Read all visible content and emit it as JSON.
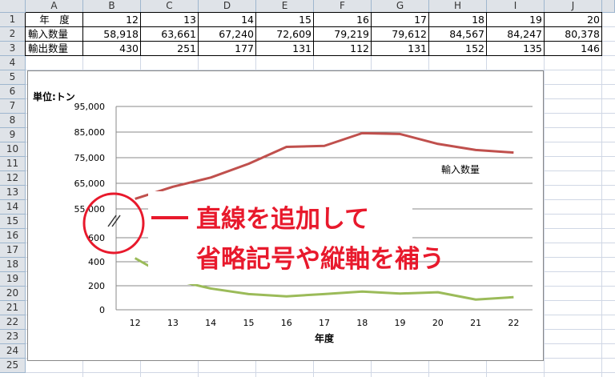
{
  "columns": [
    "A",
    "B",
    "C",
    "D",
    "E",
    "F",
    "G",
    "H",
    "I",
    "J"
  ],
  "rows": [
    "1",
    "2",
    "3",
    "4",
    "5",
    "6",
    "7",
    "8",
    "9",
    "10",
    "11",
    "12",
    "13",
    "14",
    "15",
    "16",
    "17",
    "18",
    "19",
    "20",
    "21",
    "22",
    "23",
    "24",
    "25"
  ],
  "table": {
    "row1": {
      "label": "年　度",
      "values": [
        "12",
        "13",
        "14",
        "15",
        "16",
        "17",
        "18",
        "19",
        "20"
      ]
    },
    "row2": {
      "label": "輸入数量",
      "values": [
        "58,918",
        "63,661",
        "67,240",
        "72,609",
        "79,219",
        "79,612",
        "84,567",
        "84,247",
        "80,378"
      ]
    },
    "row3": {
      "label": "輸出数量",
      "values": [
        "430",
        "251",
        "177",
        "131",
        "112",
        "131",
        "152",
        "135",
        "146"
      ]
    }
  },
  "chart_data": {
    "type": "line",
    "unit_label": "単位:トン",
    "xlabel": "年度",
    "categories": [
      "12",
      "13",
      "14",
      "15",
      "16",
      "17",
      "18",
      "19",
      "20",
      "21",
      "22"
    ],
    "upper_axis": {
      "ticks": [
        "95,000",
        "85,000",
        "75,000",
        "65,000",
        "55,000"
      ],
      "ylim": [
        55000,
        95000
      ]
    },
    "lower_axis": {
      "ticks": [
        "600",
        "400",
        "200",
        "0"
      ],
      "ylim": [
        0,
        600
      ]
    },
    "series": [
      {
        "name": "輸入数量",
        "color": "#c0504d",
        "values": [
          58918,
          63661,
          67240,
          72609,
          79219,
          79612,
          84567,
          84247,
          80378,
          78000,
          77000
        ]
      },
      {
        "name": "",
        "color": "#9bbb59",
        "values": [
          430,
          251,
          177,
          131,
          112,
          131,
          152,
          135,
          146,
          85,
          105
        ]
      }
    ],
    "annotation": {
      "line1": "直線を追加して",
      "line2": "省略記号や縦軸を補う",
      "color": "#e8192c"
    }
  }
}
